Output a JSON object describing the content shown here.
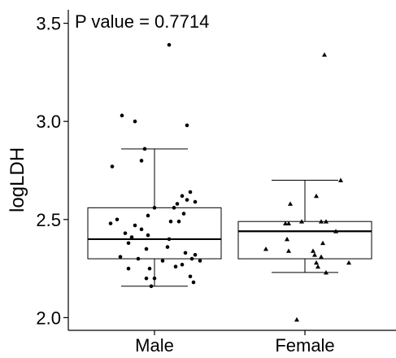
{
  "chart_data": {
    "type": "box",
    "title": "",
    "xlabel": "",
    "ylabel": "logLDH",
    "annotation": "P value = 0.7714",
    "ylim": [
      1.94,
      3.56
    ],
    "yticks": [
      2.0,
      2.5,
      3.0,
      3.5
    ],
    "ytick_labels": [
      "2.0",
      "2.5",
      "3.0",
      "3.5"
    ],
    "categories": [
      "Male",
      "Female"
    ],
    "boxes": [
      {
        "category": "Male",
        "whisker_low": 2.16,
        "q1": 2.3,
        "median": 2.4,
        "q3": 2.56,
        "whisker_high": 2.86
      },
      {
        "category": "Female",
        "whisker_low": 2.23,
        "q1": 2.3,
        "median": 2.44,
        "q3": 2.49,
        "whisker_high": 2.7
      }
    ],
    "series": [
      {
        "category": "Male",
        "marker": "circle",
        "points": [
          {
            "x": -0.26,
            "y": 2.77
          },
          {
            "x": -0.2,
            "y": 3.03
          },
          {
            "x": -0.12,
            "y": 3.0
          },
          {
            "x": 0.09,
            "y": 3.39
          },
          {
            "x": 0.2,
            "y": 2.98
          },
          {
            "x": -0.06,
            "y": 2.86
          },
          {
            "x": -0.08,
            "y": 2.8
          },
          {
            "x": 0.0,
            "y": 2.56
          },
          {
            "x": 0.12,
            "y": 2.56
          },
          {
            "x": 0.2,
            "y": 2.6
          },
          {
            "x": 0.25,
            "y": 2.59
          },
          {
            "x": 0.22,
            "y": 2.64
          },
          {
            "x": 0.17,
            "y": 2.62
          },
          {
            "x": 0.14,
            "y": 2.58
          },
          {
            "x": 0.18,
            "y": 2.53
          },
          {
            "x": 0.15,
            "y": 2.49
          },
          {
            "x": 0.1,
            "y": 2.49
          },
          {
            "x": -0.04,
            "y": 2.52
          },
          {
            "x": -0.12,
            "y": 2.47
          },
          {
            "x": -0.23,
            "y": 2.5
          },
          {
            "x": -0.27,
            "y": 2.48
          },
          {
            "x": -0.08,
            "y": 2.45
          },
          {
            "x": -0.18,
            "y": 2.43
          },
          {
            "x": -0.04,
            "y": 2.42
          },
          {
            "x": 0.09,
            "y": 2.4
          },
          {
            "x": -0.14,
            "y": 2.41
          },
          {
            "x": -0.16,
            "y": 2.38
          },
          {
            "x": -0.05,
            "y": 2.35
          },
          {
            "x": 0.08,
            "y": 2.36
          },
          {
            "x": 0.19,
            "y": 2.33
          },
          {
            "x": 0.25,
            "y": 2.32
          },
          {
            "x": 0.23,
            "y": 2.3
          },
          {
            "x": 0.28,
            "y": 2.29
          },
          {
            "x": 0.17,
            "y": 2.27
          },
          {
            "x": 0.13,
            "y": 2.26
          },
          {
            "x": 0.05,
            "y": 2.29
          },
          {
            "x": -0.1,
            "y": 2.3
          },
          {
            "x": -0.21,
            "y": 2.31
          },
          {
            "x": -0.16,
            "y": 2.25
          },
          {
            "x": -0.03,
            "y": 2.25
          },
          {
            "x": -0.05,
            "y": 2.2
          },
          {
            "x": 0.0,
            "y": 2.2
          },
          {
            "x": -0.02,
            "y": 2.16
          },
          {
            "x": 0.22,
            "y": 2.21
          },
          {
            "x": 0.24,
            "y": 2.18
          }
        ]
      },
      {
        "category": "Female",
        "marker": "triangle",
        "points": [
          {
            "x": 0.12,
            "y": 3.34
          },
          {
            "x": 0.22,
            "y": 2.7
          },
          {
            "x": -0.09,
            "y": 2.58
          },
          {
            "x": 0.07,
            "y": 2.62
          },
          {
            "x": -0.1,
            "y": 2.48
          },
          {
            "x": -0.12,
            "y": 2.48
          },
          {
            "x": 0.13,
            "y": 2.49
          },
          {
            "x": 0.1,
            "y": 2.49
          },
          {
            "x": -0.02,
            "y": 2.49
          },
          {
            "x": 0.19,
            "y": 2.44
          },
          {
            "x": -0.11,
            "y": 2.4
          },
          {
            "x": 0.11,
            "y": 2.38
          },
          {
            "x": -0.1,
            "y": 2.34
          },
          {
            "x": 0.05,
            "y": 2.34
          },
          {
            "x": 0.06,
            "y": 2.32
          },
          {
            "x": 0.1,
            "y": 2.31
          },
          {
            "x": 0.07,
            "y": 2.28
          },
          {
            "x": 0.27,
            "y": 2.28
          },
          {
            "x": 0.08,
            "y": 2.26
          },
          {
            "x": 0.13,
            "y": 2.23
          },
          {
            "x": -0.24,
            "y": 2.35
          },
          {
            "x": -0.05,
            "y": 1.99
          }
        ]
      }
    ],
    "grid": false,
    "legend": "none"
  }
}
